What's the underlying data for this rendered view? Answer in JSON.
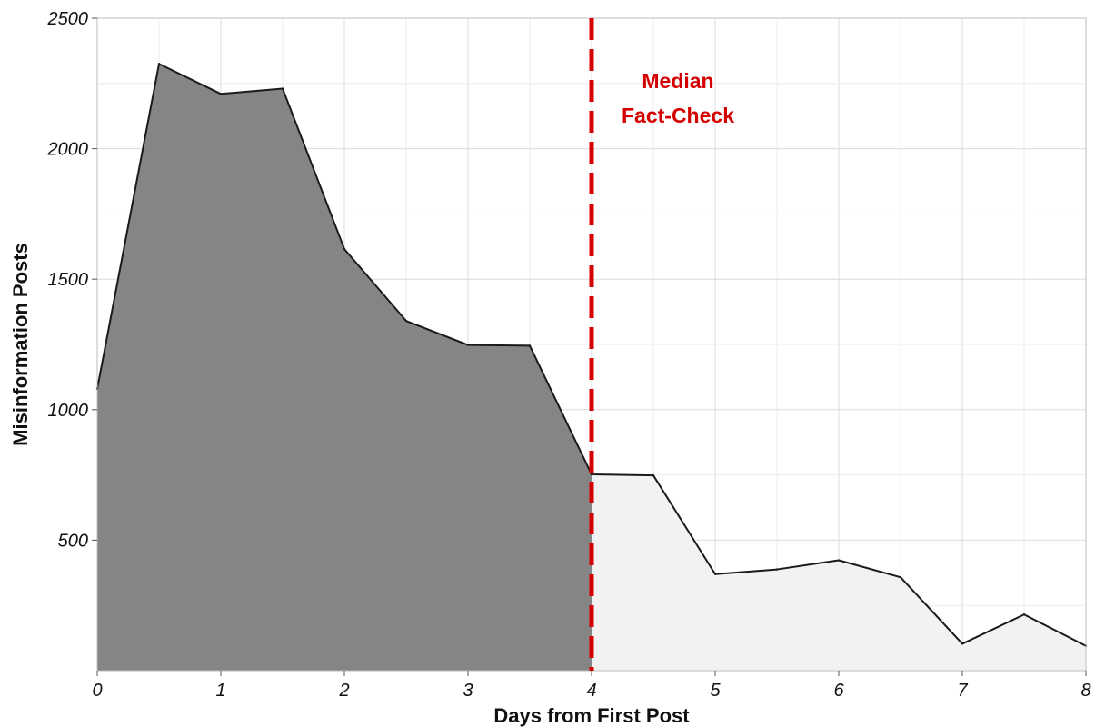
{
  "chart_data": {
    "type": "area",
    "xlabel": "Days from First Post",
    "ylabel": "Misinformation Posts",
    "xlim": [
      0,
      8
    ],
    "ylim": [
      0,
      2500
    ],
    "x_ticks": [
      0,
      1,
      2,
      3,
      4,
      5,
      6,
      7,
      8
    ],
    "y_ticks": [
      500,
      1000,
      1500,
      2000,
      2500
    ],
    "grid": true,
    "x": [
      0,
      0.5,
      1,
      1.5,
      2,
      2.5,
      3,
      3.5,
      4,
      4.5,
      5,
      5.5,
      6,
      6.5,
      7,
      7.5,
      8
    ],
    "values": [
      1080,
      2325,
      2210,
      2230,
      1615,
      1340,
      1248,
      1245,
      752,
      748,
      370,
      388,
      423,
      358,
      103,
      215,
      95
    ],
    "split_x": 4,
    "fill_before_split": "#858585",
    "fill_after_split": "#f2f2f2",
    "line_color": "#1a1a1a",
    "annotation": {
      "x": 4,
      "lines": [
        "Median",
        "Fact-Check"
      ],
      "color": "#d40000"
    }
  }
}
